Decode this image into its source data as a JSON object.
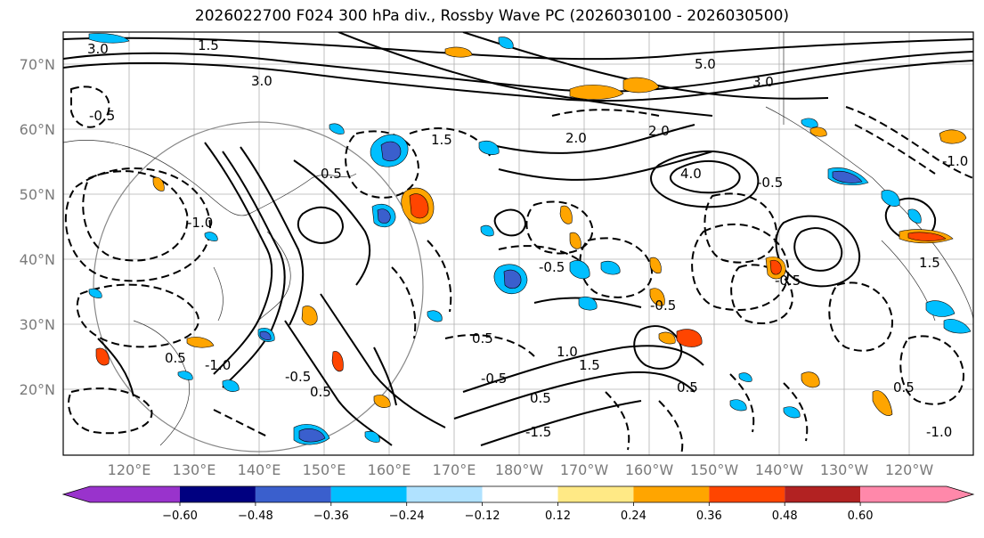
{
  "title": "2026022700 F024 300 hPa div., Rossby Wave PC (2026030100 - 2026030500)",
  "lat_labels": [
    "70°N",
    "60°N",
    "50°N",
    "40°N",
    "30°N",
    "20°N"
  ],
  "lon_labels": [
    "120°E",
    "130°E",
    "140°E",
    "150°E",
    "160°E",
    "170°E",
    "180°W",
    "170°W",
    "160°W",
    "150°W",
    "140°W",
    "130°W",
    "120°W"
  ],
  "colorbar": {
    "colors": [
      "#9933cc",
      "#000080",
      "#3a5fcd",
      "#00bfff",
      "#b0e2ff",
      "#ffffff",
      "#ffe985",
      "#ffa500",
      "#ff4500",
      "#b22222",
      "#ff88aa"
    ],
    "ticks": [
      "−0.60",
      "−0.48",
      "−0.36",
      "−0.24",
      "−0.12",
      "0.12",
      "0.24",
      "0.36",
      "0.48",
      "0.60"
    ],
    "extend": "both"
  },
  "contour_labels": [
    "3.0",
    "1.5",
    "3.0",
    "3.0",
    "5.0",
    "1.5",
    "-0.5",
    "2.0",
    "2.0",
    "4.0",
    "-1.0",
    "-0.5",
    "1.5",
    "0.5",
    "-0.5",
    "0.5",
    "-0.5",
    "-0.5",
    "0.5",
    "1.5",
    "0.5",
    "0.5",
    "-1.0",
    "0.5",
    "-1.0",
    "-0.5",
    "1.0",
    "-1.0",
    "-0.5",
    "0.5",
    "-1.5"
  ]
}
